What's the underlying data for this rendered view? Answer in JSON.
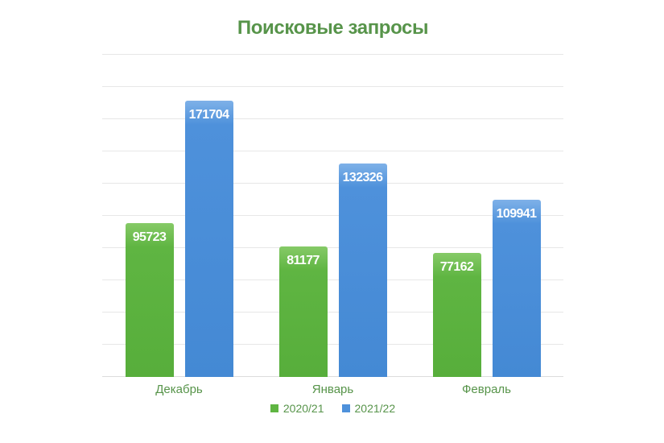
{
  "chart_data": {
    "type": "bar",
    "title": "Поисковые запросы",
    "categories": [
      "Декабрь",
      "Январь",
      "Февраль"
    ],
    "series": [
      {
        "name": "2020/21",
        "values": [
          95723,
          81177,
          77162
        ],
        "color": "#5FB542",
        "color_top": "#86CA67",
        "color_bottom": "#57AE3B"
      },
      {
        "name": "2021/22",
        "values": [
          171704,
          132326,
          109941
        ],
        "color": "#4E91DB",
        "color_top": "#7EB1E8",
        "color_bottom": "#4489D4"
      }
    ],
    "xlabel": "",
    "ylabel": "",
    "ylim": [
      0,
      200000
    ],
    "grid_step": 20000,
    "grid": true,
    "y_tick_labels_visible": false,
    "legend_position": "bottom",
    "value_labels": "inside-top"
  },
  "styles": {
    "label_color": "#57944A",
    "value_label_color": "#FFFFFF",
    "grid_color": "#E7E7E7",
    "baseline_color": "#DCDCDC",
    "background": "#FFFFFF"
  }
}
